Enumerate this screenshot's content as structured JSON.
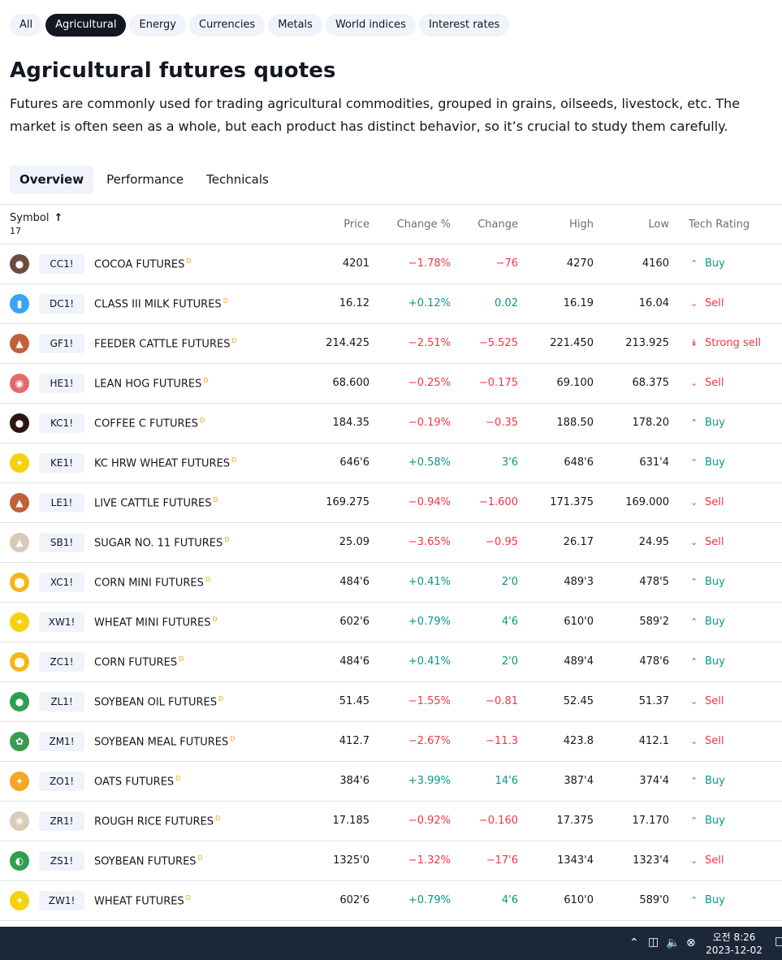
{
  "filters": [
    {
      "label": "All",
      "active": false
    },
    {
      "label": "Agricultural",
      "active": true
    },
    {
      "label": "Energy",
      "active": false
    },
    {
      "label": "Currencies",
      "active": false
    },
    {
      "label": "Metals",
      "active": false
    },
    {
      "label": "World indices",
      "active": false
    },
    {
      "label": "Interest rates",
      "active": false
    }
  ],
  "page": {
    "title": "Agricultural futures quotes",
    "description": "Futures are commonly used for trading agricultural commodities, grouped in grains, oilseeds, livestock, etc. The market is often seen as a whole, but each product has distinct behavior, so it’s crucial to study them carefully."
  },
  "tabs": [
    {
      "label": "Overview",
      "active": true
    },
    {
      "label": "Performance",
      "active": false
    },
    {
      "label": "Technicals",
      "active": false
    }
  ],
  "table": {
    "headers": {
      "symbol": "Symbol",
      "sort_arrow": "↑",
      "count": "17",
      "price": "Price",
      "change_pct": "Change %",
      "change": "Change",
      "high": "High",
      "low": "Low",
      "rating": "Tech Rating"
    },
    "rows": [
      {
        "ticker": "CC1!",
        "name": "COCOA FUTURES",
        "badge": "D",
        "price": "4201",
        "change_pct": "−1.78%",
        "change": "−76",
        "high": "4270",
        "low": "4160",
        "rating": "Buy",
        "dir": "neg",
        "rating_type": "buy",
        "logo_color": "#6d4c3d",
        "logo_icon": "cocoa-bean-icon"
      },
      {
        "ticker": "DC1!",
        "name": "CLASS III MILK FUTURES",
        "badge": "D",
        "price": "16.12",
        "change_pct": "+0.12%",
        "change": "0.02",
        "high": "16.19",
        "low": "16.04",
        "rating": "Sell",
        "dir": "pos",
        "rating_type": "sell",
        "logo_color": "#3ba3f5",
        "logo_icon": "milk-bottle-icon"
      },
      {
        "ticker": "GF1!",
        "name": "FEEDER CATTLE FUTURES",
        "badge": "D",
        "price": "214.425",
        "change_pct": "−2.51%",
        "change": "−5.525",
        "high": "221.450",
        "low": "213.925",
        "rating": "Strong sell",
        "dir": "neg",
        "rating_type": "strong-sell",
        "logo_color": "#c0603a",
        "logo_icon": "cattle-icon"
      },
      {
        "ticker": "HE1!",
        "name": "LEAN HOG FUTURES",
        "badge": "D",
        "price": "68.600",
        "change_pct": "−0.25%",
        "change": "−0.175",
        "high": "69.100",
        "low": "68.375",
        "rating": "Sell",
        "dir": "neg",
        "rating_type": "sell",
        "logo_color": "#e36a6a",
        "logo_icon": "hog-icon"
      },
      {
        "ticker": "KC1!",
        "name": "COFFEE C FUTURES",
        "badge": "D",
        "price": "184.35",
        "change_pct": "−0.19%",
        "change": "−0.35",
        "high": "188.50",
        "low": "178.20",
        "rating": "Buy",
        "dir": "neg",
        "rating_type": "buy",
        "logo_color": "#2b1512",
        "logo_icon": "coffee-bean-icon"
      },
      {
        "ticker": "KE1!",
        "name": "KC HRW WHEAT FUTURES",
        "badge": "D",
        "price": "646'6",
        "change_pct": "+0.58%",
        "change": "3'6",
        "high": "648'6",
        "low": "631'4",
        "rating": "Buy",
        "dir": "pos",
        "rating_type": "buy",
        "logo_color": "#f5d10f",
        "logo_icon": "wheat-icon"
      },
      {
        "ticker": "LE1!",
        "name": "LIVE CATTLE FUTURES",
        "badge": "D",
        "price": "169.275",
        "change_pct": "−0.94%",
        "change": "−1.600",
        "high": "171.375",
        "low": "169.000",
        "rating": "Sell",
        "dir": "neg",
        "rating_type": "sell",
        "logo_color": "#c0603a",
        "logo_icon": "cattle-icon"
      },
      {
        "ticker": "SB1!",
        "name": "SUGAR NO. 11 FUTURES",
        "badge": "D",
        "price": "25.09",
        "change_pct": "−3.65%",
        "change": "−0.95",
        "high": "26.17",
        "low": "24.95",
        "rating": "Sell",
        "dir": "neg",
        "rating_type": "sell",
        "logo_color": "#d9c9b8",
        "logo_icon": "sugar-icon"
      },
      {
        "ticker": "XC1!",
        "name": "CORN MINI FUTURES",
        "badge": "D",
        "price": "484'6",
        "change_pct": "+0.41%",
        "change": "2'0",
        "high": "489'3",
        "low": "478'5",
        "rating": "Buy",
        "dir": "pos",
        "rating_type": "buy",
        "logo_color": "#f5b619",
        "logo_icon": "corn-icon"
      },
      {
        "ticker": "XW1!",
        "name": "WHEAT MINI FUTURES",
        "badge": "D",
        "price": "602'6",
        "change_pct": "+0.79%",
        "change": "4'6",
        "high": "610'0",
        "low": "589'2",
        "rating": "Buy",
        "dir": "pos",
        "rating_type": "buy",
        "logo_color": "#f5d10f",
        "logo_icon": "wheat-icon"
      },
      {
        "ticker": "ZC1!",
        "name": "CORN FUTURES",
        "badge": "D",
        "price": "484'6",
        "change_pct": "+0.41%",
        "change": "2'0",
        "high": "489'4",
        "low": "478'6",
        "rating": "Buy",
        "dir": "pos",
        "rating_type": "buy",
        "logo_color": "#f5b619",
        "logo_icon": "corn-icon"
      },
      {
        "ticker": "ZL1!",
        "name": "SOYBEAN OIL FUTURES",
        "badge": "D",
        "price": "51.45",
        "change_pct": "−1.55%",
        "change": "−0.81",
        "high": "52.45",
        "low": "51.37",
        "rating": "Sell",
        "dir": "neg",
        "rating_type": "sell",
        "logo_color": "#2e9e4f",
        "logo_icon": "oil-drop-icon"
      },
      {
        "ticker": "ZM1!",
        "name": "SOYBEAN MEAL FUTURES",
        "badge": "D",
        "price": "412.7",
        "change_pct": "−2.67%",
        "change": "−11.3",
        "high": "423.8",
        "low": "412.1",
        "rating": "Sell",
        "dir": "neg",
        "rating_type": "sell",
        "logo_color": "#3a9a4e",
        "logo_icon": "soybean-meal-icon"
      },
      {
        "ticker": "ZO1!",
        "name": "OATS FUTURES",
        "badge": "D",
        "price": "384'6",
        "change_pct": "+3.99%",
        "change": "14'6",
        "high": "387'4",
        "low": "374'4",
        "rating": "Buy",
        "dir": "pos",
        "rating_type": "buy",
        "logo_color": "#f5a623",
        "logo_icon": "oats-icon"
      },
      {
        "ticker": "ZR1!",
        "name": "ROUGH RICE FUTURES",
        "badge": "D",
        "price": "17.185",
        "change_pct": "−0.92%",
        "change": "−0.160",
        "high": "17.375",
        "low": "17.170",
        "rating": "Buy",
        "dir": "neg",
        "rating_type": "buy",
        "logo_color": "#dccbb6",
        "logo_icon": "rice-icon"
      },
      {
        "ticker": "ZS1!",
        "name": "SOYBEAN FUTURES",
        "badge": "D",
        "price": "1325'0",
        "change_pct": "−1.32%",
        "change": "−17'6",
        "high": "1343'4",
        "low": "1323'4",
        "rating": "Sell",
        "dir": "neg",
        "rating_type": "sell",
        "logo_color": "#2e9e4f",
        "logo_icon": "soybean-icon"
      },
      {
        "ticker": "ZW1!",
        "name": "WHEAT FUTURES",
        "badge": "D",
        "price": "602'6",
        "change_pct": "+0.79%",
        "change": "4'6",
        "high": "610'0",
        "low": "589'0",
        "rating": "Buy",
        "dir": "pos",
        "rating_type": "buy",
        "logo_color": "#f5d10f",
        "logo_icon": "wheat-icon"
      }
    ]
  },
  "taskbar": {
    "time": "오전 8:26",
    "date": "2023-12-02",
    "icons": [
      "chevron-up-icon",
      "network-icon",
      "volume-icon",
      "close-circle-icon",
      "notification-icon"
    ]
  }
}
